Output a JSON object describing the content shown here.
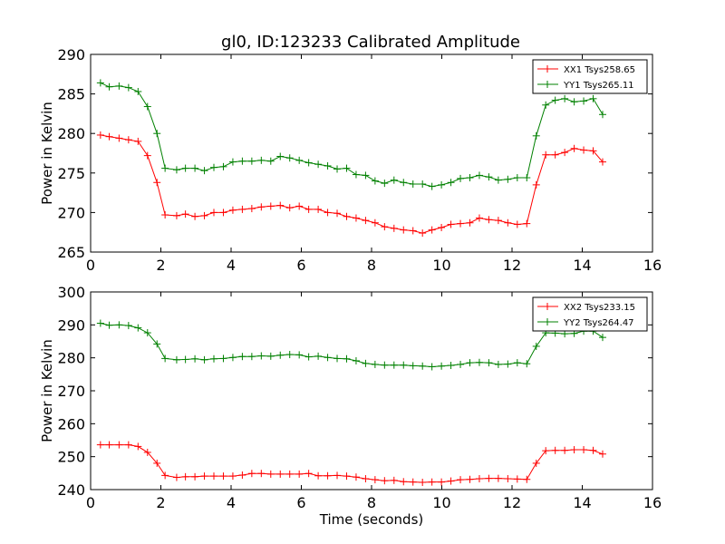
{
  "figure_title": "gl0, ID:123233 Calibrated Amplitude",
  "chart_data": [
    {
      "type": "line",
      "ylabel": "Power in Kelvin",
      "xlabel": "",
      "xlim": [
        0,
        16
      ],
      "ylim": [
        265,
        290
      ],
      "xticks": [
        "0",
        "2",
        "4",
        "6",
        "8",
        "10",
        "12",
        "14",
        "16"
      ],
      "yticks": [
        "265",
        "270",
        "275",
        "280",
        "285",
        "290"
      ],
      "grid": false,
      "legend_position": "top-right",
      "x": [
        0.28,
        0.53,
        0.81,
        1.08,
        1.35,
        1.62,
        1.89,
        2.12,
        2.45,
        2.7,
        2.97,
        3.24,
        3.51,
        3.78,
        4.05,
        4.32,
        4.59,
        4.86,
        5.13,
        5.4,
        5.67,
        5.94,
        6.21,
        6.48,
        6.75,
        7.02,
        7.29,
        7.56,
        7.83,
        8.1,
        8.37,
        8.64,
        8.91,
        9.18,
        9.45,
        9.72,
        9.99,
        10.26,
        10.53,
        10.8,
        11.07,
        11.34,
        11.61,
        11.88,
        12.15,
        12.42,
        12.69,
        12.96,
        13.23,
        13.5,
        13.77,
        14.04,
        14.31,
        14.58
      ],
      "series": [
        {
          "name": "XX1 Tsys258.65",
          "color": "#ff0000",
          "values": [
            279.8,
            279.6,
            279.4,
            279.2,
            279.0,
            277.2,
            273.8,
            269.7,
            269.6,
            269.8,
            269.5,
            269.6,
            270.0,
            270.0,
            270.3,
            270.4,
            270.5,
            270.7,
            270.8,
            270.9,
            270.6,
            270.8,
            270.4,
            270.4,
            270.0,
            269.9,
            269.5,
            269.3,
            269.0,
            268.7,
            268.2,
            268.0,
            267.8,
            267.7,
            267.4,
            267.8,
            268.1,
            268.5,
            268.6,
            268.7,
            269.3,
            269.1,
            269.0,
            268.7,
            268.5,
            268.6,
            273.5,
            277.3,
            277.3,
            277.6,
            278.1,
            277.9,
            277.8,
            276.4
          ]
        },
        {
          "name": "YY1 Tsys265.11",
          "color": "#008000",
          "values": [
            286.4,
            285.9,
            286.0,
            285.8,
            285.3,
            283.4,
            280.0,
            275.6,
            275.4,
            275.6,
            275.6,
            275.3,
            275.7,
            275.8,
            276.4,
            276.5,
            276.5,
            276.6,
            276.5,
            277.1,
            276.9,
            276.6,
            276.3,
            276.1,
            275.9,
            275.5,
            275.6,
            274.8,
            274.7,
            274.0,
            273.7,
            274.1,
            273.8,
            273.6,
            273.6,
            273.3,
            273.5,
            273.8,
            274.3,
            274.4,
            274.7,
            274.5,
            274.1,
            274.2,
            274.4,
            274.4,
            279.7,
            283.6,
            284.2,
            284.4,
            284.0,
            284.1,
            284.4,
            282.4
          ]
        }
      ]
    },
    {
      "type": "line",
      "ylabel": "Power in Kelvin",
      "xlabel": "Time (seconds)",
      "xlim": [
        0,
        16
      ],
      "ylim": [
        240,
        300
      ],
      "xticks": [
        "0",
        "2",
        "4",
        "6",
        "8",
        "10",
        "12",
        "14",
        "16"
      ],
      "yticks": [
        "240",
        "250",
        "260",
        "270",
        "280",
        "290",
        "300"
      ],
      "grid": false,
      "legend_position": "top-right",
      "x": [
        0.28,
        0.53,
        0.81,
        1.08,
        1.35,
        1.62,
        1.89,
        2.12,
        2.45,
        2.7,
        2.97,
        3.24,
        3.51,
        3.78,
        4.05,
        4.32,
        4.59,
        4.86,
        5.13,
        5.4,
        5.67,
        5.94,
        6.21,
        6.48,
        6.75,
        7.02,
        7.29,
        7.56,
        7.83,
        8.1,
        8.37,
        8.64,
        8.91,
        9.18,
        9.45,
        9.72,
        9.99,
        10.26,
        10.53,
        10.8,
        11.07,
        11.34,
        11.61,
        11.88,
        12.15,
        12.42,
        12.69,
        12.96,
        13.23,
        13.5,
        13.77,
        14.04,
        14.31,
        14.58
      ],
      "series": [
        {
          "name": "XX2 Tsys233.15",
          "color": "#ff0000",
          "values": [
            253.6,
            253.6,
            253.6,
            253.6,
            253.1,
            251.3,
            248.0,
            244.3,
            243.7,
            243.9,
            243.9,
            244.1,
            244.1,
            244.1,
            244.1,
            244.4,
            244.9,
            244.9,
            244.7,
            244.7,
            244.7,
            244.7,
            244.9,
            244.2,
            244.2,
            244.3,
            244.1,
            243.8,
            243.3,
            243.0,
            242.7,
            242.8,
            242.4,
            242.3,
            242.2,
            242.3,
            242.3,
            242.6,
            243.0,
            243.1,
            243.3,
            243.4,
            243.4,
            243.3,
            243.2,
            243.1,
            248.0,
            251.8,
            251.9,
            251.9,
            252.1,
            252.1,
            251.9,
            250.8
          ]
        },
        {
          "name": "YY2 Tsys264.47",
          "color": "#008000",
          "values": [
            290.5,
            289.9,
            290.0,
            289.8,
            289.1,
            287.6,
            284.2,
            279.8,
            279.4,
            279.5,
            279.7,
            279.4,
            279.7,
            279.8,
            280.1,
            280.4,
            280.4,
            280.6,
            280.5,
            280.8,
            281.0,
            280.9,
            280.3,
            280.5,
            280.1,
            279.8,
            279.7,
            279.1,
            278.3,
            278.0,
            277.8,
            277.8,
            277.8,
            277.6,
            277.5,
            277.3,
            277.5,
            277.7,
            278.0,
            278.5,
            278.6,
            278.5,
            278.0,
            278.1,
            278.5,
            278.2,
            283.5,
            287.6,
            287.5,
            287.3,
            287.4,
            288.1,
            288.1,
            286.2
          ]
        }
      ]
    }
  ]
}
